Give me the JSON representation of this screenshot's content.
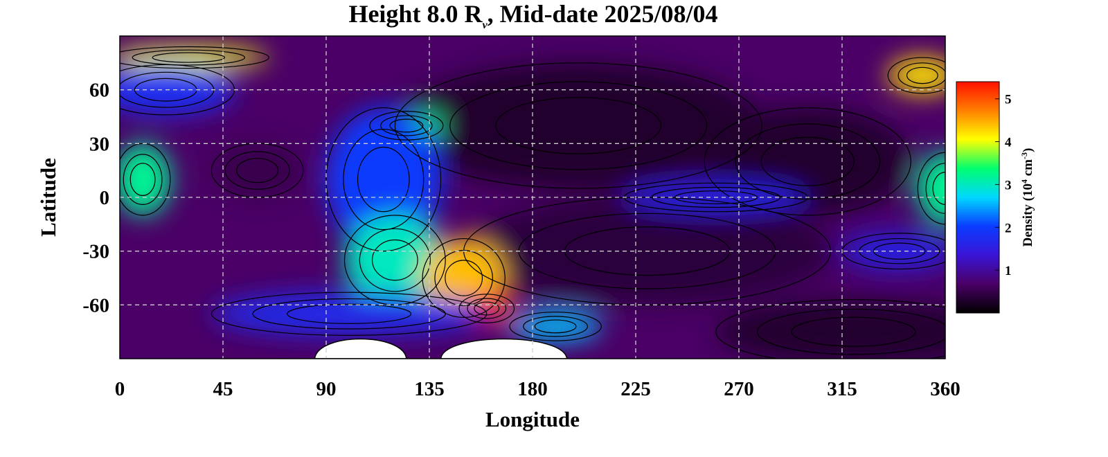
{
  "chart_data": {
    "type": "heatmap",
    "title": {
      "prefix": "Height 8.0 R",
      "subscript": "v",
      "suffix": ", Mid-date 2025/08/04"
    },
    "xlabel": "Longitude",
    "ylabel": "Latitude",
    "xlim": [
      0,
      360
    ],
    "ylim": [
      -90,
      90
    ],
    "x_ticks": [
      0,
      45,
      90,
      135,
      180,
      225,
      270,
      315,
      360
    ],
    "y_ticks": [
      60,
      30,
      0,
      -30,
      -60
    ],
    "grid": true,
    "colorbar": {
      "label": "Density (10⁴ cm⁻³)",
      "label_parts": {
        "base": "Density (10",
        "exp1": "4",
        "mid": " cm",
        "exp2": "-3",
        "end": ")"
      },
      "range": [
        0,
        5.4
      ],
      "ticks": [
        1,
        2,
        3,
        4,
        5
      ],
      "colormap": [
        "#000000",
        "#4a0066",
        "#3a14d6",
        "#0a3cff",
        "#00d8ff",
        "#00ff70",
        "#ffff00",
        "#ff8000",
        "#ff1000"
      ]
    },
    "contour_levels": [
      0.5,
      1.0,
      1.5,
      2.0,
      2.5,
      3.0,
      3.5,
      4.0,
      4.5
    ],
    "features": [
      {
        "lon": 200,
        "lat": 40,
        "density": 0.3,
        "w": 80,
        "h": 35
      },
      {
        "lon": 300,
        "lat": 20,
        "density": 0.3,
        "w": 45,
        "h": 30
      },
      {
        "lon": 230,
        "lat": -30,
        "density": 0.4,
        "w": 80,
        "h": 30
      },
      {
        "lon": 320,
        "lat": -75,
        "density": 0.3,
        "w": 60,
        "h": 18
      },
      {
        "lon": 60,
        "lat": 15,
        "density": 0.5,
        "w": 20,
        "h": 15
      },
      {
        "lon": 10,
        "lat": 10,
        "density": 3.2,
        "w": 12,
        "h": 20
      },
      {
        "lon": 360,
        "lat": 5,
        "density": 3.2,
        "w": 12,
        "h": 20
      },
      {
        "lon": 350,
        "lat": 68,
        "density": 4.2,
        "w": 15,
        "h": 10
      },
      {
        "lon": 30,
        "lat": 78,
        "density": 4.0,
        "w": 35,
        "h": 6
      },
      {
        "lon": 20,
        "lat": 60,
        "density": 1.8,
        "w": 30,
        "h": 14
      },
      {
        "lon": 125,
        "lat": 40,
        "density": 3.2,
        "w": 16,
        "h": 8
      },
      {
        "lon": 115,
        "lat": 10,
        "density": 2.0,
        "w": 25,
        "h": 40
      },
      {
        "lon": 120,
        "lat": -35,
        "density": 3.0,
        "w": 22,
        "h": 25
      },
      {
        "lon": 150,
        "lat": -45,
        "density": 4.4,
        "w": 18,
        "h": 22
      },
      {
        "lon": 160,
        "lat": -62,
        "density": 5.3,
        "w": 12,
        "h": 8
      },
      {
        "lon": 100,
        "lat": -65,
        "density": 1.7,
        "w": 60,
        "h": 12
      },
      {
        "lon": 260,
        "lat": 0,
        "density": 1.6,
        "w": 40,
        "h": 8
      },
      {
        "lon": 340,
        "lat": -30,
        "density": 1.6,
        "w": 25,
        "h": 10
      },
      {
        "lon": 190,
        "lat": -72,
        "density": 2.6,
        "w": 20,
        "h": 8
      }
    ],
    "white_regions": [
      {
        "lon_start": 85,
        "lon_end": 125,
        "lat": -90
      },
      {
        "lon_start": 140,
        "lon_end": 195,
        "lat": -90
      }
    ]
  }
}
